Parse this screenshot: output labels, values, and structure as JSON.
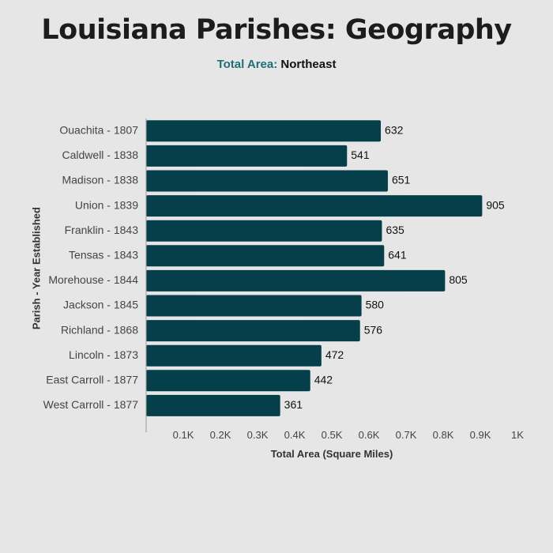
{
  "header": {
    "title": "Louisiana Parishes: Geography",
    "subtitle_label": "Total Area:",
    "subtitle_value": "Northeast"
  },
  "colors": {
    "bar": "#05404a",
    "subtitle_accent": "#1f6f78",
    "background": "#e6e6e6",
    "axis": "#9a9a9a"
  },
  "chart_data": {
    "type": "bar",
    "orientation": "horizontal",
    "categories": [
      "Ouachita - 1807",
      "Caldwell - 1838",
      "Madison - 1838",
      "Union - 1839",
      "Franklin - 1843",
      "Tensas - 1843",
      "Morehouse - 1844",
      "Jackson - 1845",
      "Richland - 1868",
      "Lincoln - 1873",
      "East Carroll - 1877",
      "West Carroll - 1877"
    ],
    "values": [
      632,
      541,
      651,
      905,
      635,
      641,
      805,
      580,
      576,
      472,
      442,
      361
    ],
    "xlabel": "Total Area (Square Miles)",
    "ylabel": "Parish - Year Established",
    "xlim": [
      0,
      1000
    ],
    "xticks": [
      100,
      200,
      300,
      400,
      500,
      600,
      700,
      800,
      900,
      1000
    ],
    "xtick_labels": [
      "0.1K",
      "0.2K",
      "0.3K",
      "0.4K",
      "0.5K",
      "0.6K",
      "0.7K",
      "0.8K",
      "0.9K",
      "1K"
    ],
    "data_labels": true,
    "grid": false,
    "legend": "none"
  }
}
